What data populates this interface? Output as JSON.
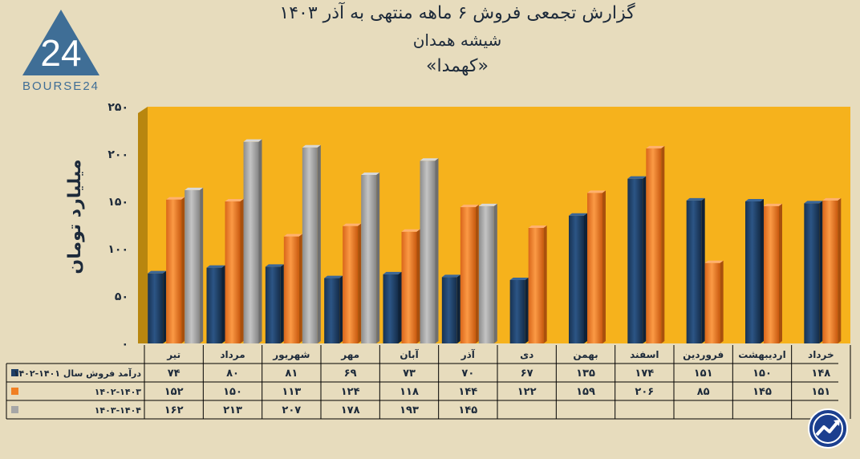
{
  "title": {
    "line1": "گزارش تجمعی فروش ۶ ماهه منتهی به آذر ۱۴۰۳",
    "line2": "شیشه همدان",
    "line3": "«کهمدا»"
  },
  "logo": {
    "text": "BOURSE24",
    "number": "24",
    "icon": "bourse24-triangle-logo"
  },
  "footer_icon": "trend-arrow-circle-icon",
  "colors": {
    "background": "#e7dcbd",
    "plot_bg": "#f6b21c",
    "series1": "#1f3f66",
    "series2": "#f07f22",
    "series3": "#a6a6a6",
    "text": "#1d2a3a"
  },
  "chart_data": {
    "type": "bar",
    "ylabel": "میلیارد تومان",
    "ylim": [
      0,
      250
    ],
    "yticks": [
      0,
      50,
      100,
      150,
      200,
      250
    ],
    "ytick_labels": [
      "۰",
      "۵۰",
      "۱۰۰",
      "۱۵۰",
      "۲۰۰",
      "۲۵۰"
    ],
    "grid": false,
    "categories": [
      "تیر",
      "مرداد",
      "شهریور",
      "مهر",
      "آبان",
      "آذر",
      "دی",
      "بهمن",
      "اسفند",
      "فروردین",
      "اردیبهشت",
      "خرداد"
    ],
    "series": [
      {
        "name": "درآمد فروش سال ۱۴۰۱-۱۴۰۲",
        "values": [
          74,
          80,
          81,
          69,
          73,
          70,
          67,
          135,
          174,
          151,
          150,
          148
        ],
        "labels": [
          "۷۴",
          "۸۰",
          "۸۱",
          "۶۹",
          "۷۳",
          "۷۰",
          "۶۷",
          "۱۳۵",
          "۱۷۴",
          "۱۵۱",
          "۱۵۰",
          "۱۴۸"
        ]
      },
      {
        "name": "۱۴۰۲-۱۴۰۳",
        "values": [
          152,
          150,
          113,
          124,
          118,
          144,
          122,
          159,
          206,
          85,
          145,
          151
        ],
        "labels": [
          "۱۵۲",
          "۱۵۰",
          "۱۱۳",
          "۱۲۴",
          "۱۱۸",
          "۱۴۴",
          "۱۲۲",
          "۱۵۹",
          "۲۰۶",
          "۸۵",
          "۱۴۵",
          "۱۵۱"
        ]
      },
      {
        "name": "۱۴۰۳-۱۴۰۴",
        "values": [
          162,
          213,
          207,
          178,
          193,
          145,
          null,
          null,
          null,
          null,
          null,
          null
        ],
        "labels": [
          "۱۶۲",
          "۲۱۳",
          "۲۰۷",
          "۱۷۸",
          "۱۹۳",
          "۱۴۵",
          "",
          "",
          "",
          "",
          "",
          ""
        ]
      }
    ]
  }
}
